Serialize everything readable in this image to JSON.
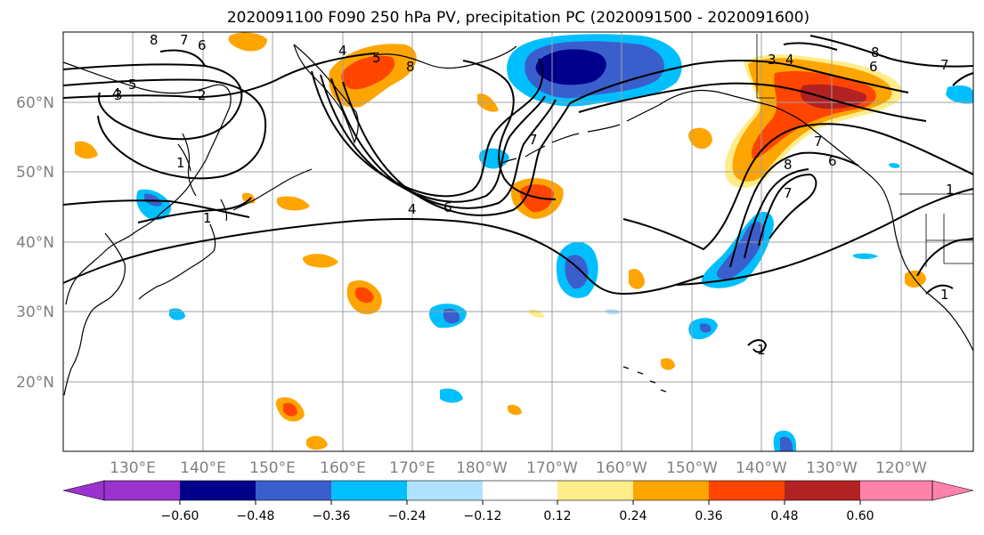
{
  "title": "2020091100 F090 250 hPa PV, precipitation PC (2020091500 - 2020091600)",
  "lat_labels": [
    "60°N",
    "50°N",
    "40°N",
    "30°N",
    "20°N"
  ],
  "lon_labels": [
    "130°E",
    "140°E",
    "150°E",
    "160°E",
    "170°E",
    "180°W",
    "170°W",
    "160°W",
    "150°W",
    "140°W",
    "130°W",
    "120°W"
  ],
  "colorbar": {
    "tick_labels": [
      "−0.60",
      "−0.48",
      "−0.36",
      "−0.24",
      "−0.12",
      "0.12",
      "0.24",
      "0.36",
      "0.48",
      "0.60"
    ],
    "colors": [
      "#9a32cd",
      "#00008b",
      "#3a5fcd",
      "#00bfff",
      "#b0e2ff",
      "#ffffff",
      "#ffec8b",
      "#ffa500",
      "#ff4500",
      "#b22222",
      "#ff82ab"
    ]
  },
  "contour_labels": [
    "8",
    "7",
    "6",
    "5",
    "4",
    "3",
    "2",
    "1",
    "4",
    "5",
    "8",
    "7",
    "4",
    "6",
    "1",
    "7",
    "8",
    "3",
    "4",
    "6",
    "7",
    "8",
    "7",
    "6",
    "1",
    "1",
    "1"
  ]
}
